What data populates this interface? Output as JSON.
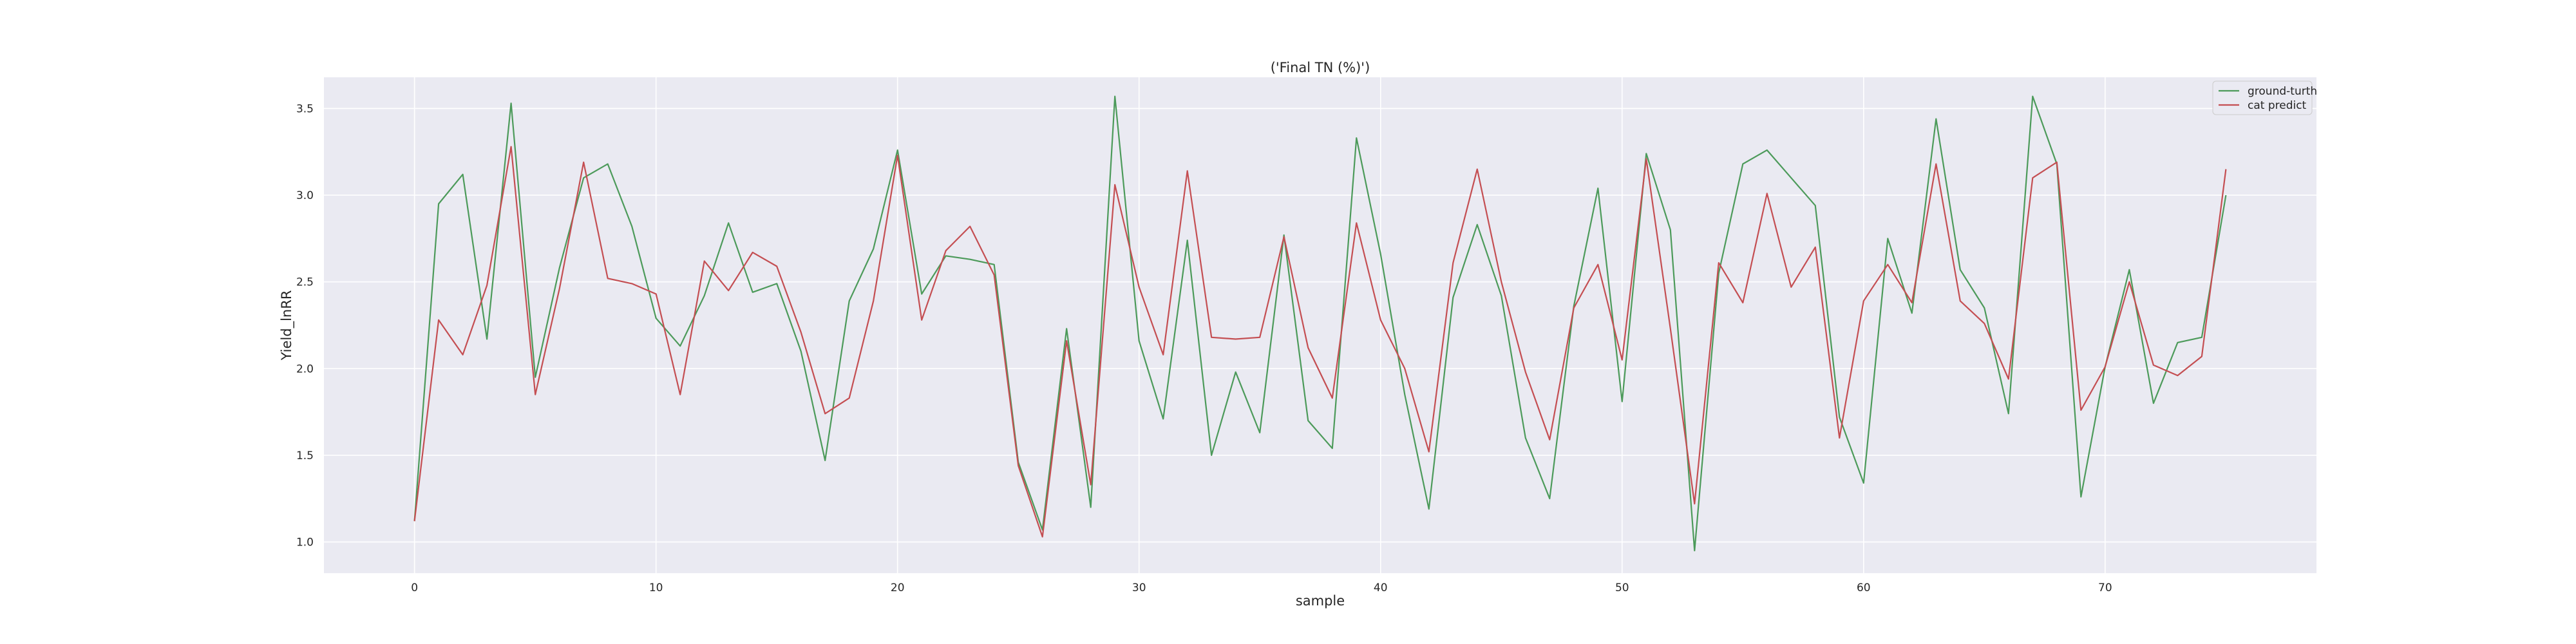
{
  "chart_data": {
    "type": "line",
    "title": "('Final TN (%)')",
    "xlabel": "sample",
    "ylabel": "Yield_lnRR",
    "xlim": [
      -3.75,
      78.75
    ],
    "ylim": [
      0.82,
      3.68
    ],
    "xticks": [
      0,
      10,
      20,
      30,
      40,
      50,
      60,
      70
    ],
    "yticks": [
      1.0,
      1.5,
      2.0,
      2.5,
      3.0,
      3.5
    ],
    "grid": true,
    "legend_position": "top-right",
    "x": [
      0,
      1,
      2,
      3,
      4,
      5,
      6,
      7,
      8,
      9,
      10,
      11,
      12,
      13,
      14,
      15,
      16,
      17,
      18,
      19,
      20,
      21,
      22,
      23,
      24,
      25,
      26,
      27,
      28,
      29,
      30,
      31,
      32,
      33,
      34,
      35,
      36,
      37,
      38,
      39,
      40,
      41,
      42,
      43,
      44,
      45,
      46,
      47,
      48,
      49,
      50,
      51,
      52,
      53,
      54,
      55,
      56,
      57,
      58,
      59,
      60,
      61,
      62,
      63,
      64,
      65,
      66,
      67,
      68,
      69,
      70,
      71,
      72,
      73,
      74,
      75
    ],
    "series": [
      {
        "name": "ground-turth",
        "color": "#4c9a5a",
        "values": [
          1.12,
          2.95,
          3.12,
          2.17,
          3.53,
          1.95,
          2.58,
          3.1,
          3.18,
          2.82,
          2.29,
          2.13,
          2.42,
          2.84,
          2.44,
          2.49,
          2.1,
          1.47,
          2.39,
          2.69,
          3.26,
          2.43,
          2.65,
          2.63,
          2.6,
          1.46,
          1.07,
          2.23,
          1.2,
          3.57,
          2.16,
          1.71,
          2.74,
          1.5,
          1.98,
          1.63,
          2.77,
          1.7,
          1.54,
          3.33,
          2.66,
          1.85,
          1.19,
          2.41,
          2.83,
          2.42,
          1.6,
          1.25,
          2.36,
          3.04,
          1.81,
          3.24,
          2.8,
          0.95,
          2.55,
          3.18,
          3.26,
          3.1,
          2.94,
          1.72,
          1.34,
          2.75,
          2.32,
          3.44,
          2.57,
          2.35,
          1.74,
          3.57,
          3.18,
          1.26,
          2.01,
          2.57,
          1.8,
          2.15,
          2.18,
          3.0
        ]
      },
      {
        "name": "cat predict",
        "color": "#c44e52",
        "values": [
          1.12,
          2.28,
          2.08,
          2.48,
          3.28,
          1.85,
          2.46,
          3.19,
          2.52,
          2.49,
          2.43,
          1.85,
          2.62,
          2.45,
          2.67,
          2.59,
          2.21,
          1.74,
          1.83,
          2.39,
          3.23,
          2.28,
          2.68,
          2.82,
          2.54,
          1.44,
          1.03,
          2.16,
          1.33,
          3.06,
          2.47,
          2.08,
          3.14,
          2.18,
          2.17,
          2.18,
          2.76,
          2.12,
          1.83,
          2.84,
          2.28,
          2.0,
          1.52,
          2.61,
          3.15,
          2.5,
          1.98,
          1.59,
          2.35,
          2.6,
          2.05,
          3.21,
          2.23,
          1.22,
          2.61,
          2.38,
          3.01,
          2.47,
          2.7,
          1.6,
          2.39,
          2.6,
          2.38,
          3.18,
          2.39,
          2.26,
          1.94,
          3.1,
          3.19,
          1.76,
          2.01,
          2.5,
          2.02,
          1.96,
          2.07,
          3.15
        ]
      }
    ]
  }
}
